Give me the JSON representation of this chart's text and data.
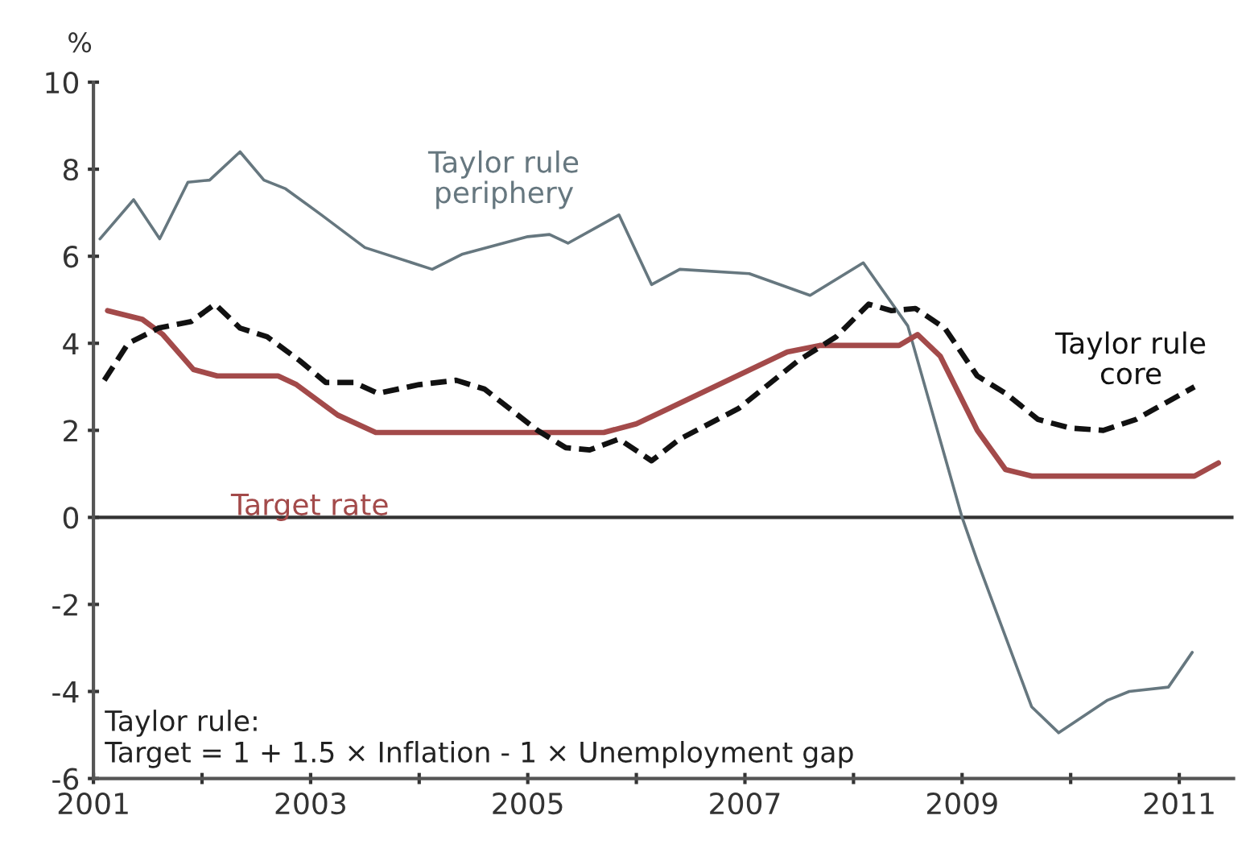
{
  "chart_data": {
    "type": "line",
    "ylabel": "%",
    "xlim": [
      2001,
      2011.5
    ],
    "ylim": [
      -6,
      10
    ],
    "xticks": [
      2001,
      {
        "value": 2002,
        "label": null
      },
      2003,
      {
        "value": 2004,
        "label": null
      },
      2005,
      {
        "value": 2006,
        "label": null
      },
      2007,
      {
        "value": 2008,
        "label": null
      },
      2009,
      {
        "value": 2010,
        "label": null
      },
      2011
    ],
    "yticks": [
      -6,
      -4,
      -2,
      0,
      2,
      4,
      6,
      8,
      10
    ],
    "grid": false,
    "legend": false,
    "ref_lines": [
      {
        "axis": "y",
        "value": 0,
        "color": "#333333"
      }
    ],
    "annotations": [
      "Taylor rule:\nTarget = 1 + 1.5 × Inflation - 1 × Unemployment gap"
    ],
    "series": [
      {
        "name": "Taylor rule\nperiphery",
        "color": "#66777f",
        "line_style": "solid",
        "x": [
          2001.06,
          2001.37,
          2001.61,
          2001.87,
          2002.07,
          2002.35,
          2002.57,
          2002.77,
          2003.1,
          2003.5,
          2004.12,
          2004.4,
          2005.0,
          2005.2,
          2005.37,
          2005.84,
          2006.14,
          2006.4,
          2007.04,
          2007.6,
          2008.09,
          2008.5,
          2009.0,
          2009.14,
          2009.64,
          2009.89,
          2010.34,
          2010.54,
          2010.9,
          2011.12
        ],
        "values": [
          6.4,
          7.3,
          6.4,
          7.7,
          7.75,
          8.4,
          7.75,
          7.55,
          6.95,
          6.2,
          5.7,
          6.05,
          6.45,
          6.5,
          6.3,
          6.95,
          5.35,
          5.7,
          5.6,
          5.1,
          5.85,
          4.4,
          0,
          -1.0,
          -4.35,
          -4.95,
          -4.2,
          -4.0,
          -3.9,
          -3.1
        ]
      },
      {
        "name": "Target rate",
        "color": "#a34a4a",
        "line_style": "solid",
        "x": [
          2001.13,
          2001.45,
          2001.64,
          2001.92,
          2002.14,
          2002.7,
          2002.87,
          2003.25,
          2003.6,
          2005.7,
          2006.0,
          2006.34,
          2007.39,
          2007.69,
          2008.42,
          2008.59,
          2008.8,
          2009.14,
          2009.4,
          2009.64,
          2011.14,
          2011.36
        ],
        "values": [
          4.75,
          4.55,
          4.2,
          3.4,
          3.25,
          3.25,
          3.05,
          2.35,
          1.95,
          1.95,
          2.15,
          2.55,
          3.8,
          3.95,
          3.95,
          4.2,
          3.7,
          2.0,
          1.1,
          0.95,
          0.95,
          1.25
        ]
      },
      {
        "name": "Taylor rule\ncore",
        "color": "#111111",
        "line_style": "dashed",
        "x": [
          2001.1,
          2001.32,
          2001.6,
          2001.9,
          2002.12,
          2002.35,
          2002.6,
          2002.9,
          2003.14,
          2003.4,
          2003.62,
          2004.0,
          2004.34,
          2004.6,
          2005.09,
          2005.35,
          2005.57,
          2005.84,
          2006.14,
          2006.4,
          2006.94,
          2007.49,
          2007.84,
          2008.14,
          2008.35,
          2008.57,
          2008.84,
          2009.14,
          2009.4,
          2009.7,
          2010.0,
          2010.3,
          2010.6,
          2011.14
        ],
        "values": [
          3.15,
          4.0,
          4.35,
          4.5,
          4.9,
          4.35,
          4.15,
          3.6,
          3.1,
          3.1,
          2.85,
          3.05,
          3.15,
          2.95,
          2.0,
          1.6,
          1.55,
          1.8,
          1.3,
          1.8,
          2.5,
          3.6,
          4.15,
          4.9,
          4.75,
          4.8,
          4.35,
          3.25,
          2.85,
          2.25,
          2.05,
          2.0,
          2.25,
          3.0
        ]
      }
    ]
  }
}
